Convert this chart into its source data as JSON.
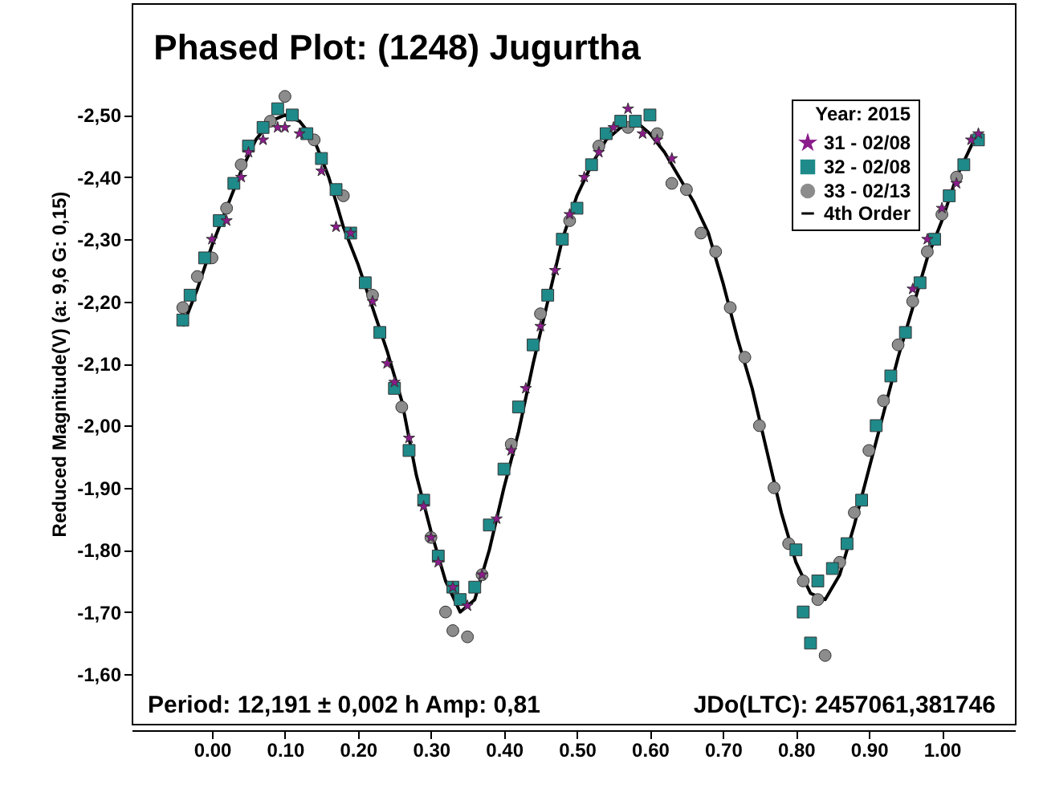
{
  "chart_data": {
    "type": "scatter",
    "title": "Phased Plot: (1248) Jugurtha",
    "ylabel": "Reduced Magnitude(V)   (a: 9,6  G: 0,15)",
    "legend_title": "Year: 2015",
    "legend": "top right",
    "grid": false,
    "xlim": [
      -0.11,
      1.1
    ],
    "ylim": [
      -1.52,
      -2.68
    ],
    "xticks": [
      {
        "value": 0,
        "label": "0.00"
      },
      {
        "value": 0.1,
        "label": "0.10"
      },
      {
        "value": 0.2,
        "label": "0.20"
      },
      {
        "value": 0.3,
        "label": "0.30"
      },
      {
        "value": 0.4,
        "label": "0.40"
      },
      {
        "value": 0.5,
        "label": "0.50"
      },
      {
        "value": 0.6,
        "label": "0.60"
      },
      {
        "value": 0.7,
        "label": "0.70"
      },
      {
        "value": 0.8,
        "label": "0.80"
      },
      {
        "value": 0.9,
        "label": "0.90"
      },
      {
        "value": 1,
        "label": "1.00"
      }
    ],
    "yticks": [
      {
        "value": -2.5,
        "label": "-2,50"
      },
      {
        "value": -2.4,
        "label": "-2,40"
      },
      {
        "value": -2.3,
        "label": "-2,30"
      },
      {
        "value": -2.2,
        "label": "-2,20"
      },
      {
        "value": -2.1,
        "label": "-2,10"
      },
      {
        "value": -2,
        "label": "-2,00"
      },
      {
        "value": -1.9,
        "label": "-1,90"
      },
      {
        "value": -1.8,
        "label": "-1,80"
      },
      {
        "value": -1.7,
        "label": "-1,70"
      },
      {
        "value": -1.6,
        "label": "-1,60"
      }
    ],
    "annotations": [
      "Period: 12,191 ± 0,002 h  Amp: 0,81",
      "JDo(LTC): 2457061,381746"
    ],
    "series": [
      {
        "name": "31 - 02/08",
        "marker": "star",
        "color": "#8b1a8b",
        "x": [
          0.0,
          0.02,
          0.04,
          0.05,
          0.07,
          0.09,
          0.1,
          0.12,
          0.15,
          0.17,
          0.19,
          0.22,
          0.24,
          0.25,
          0.27,
          0.29,
          0.3,
          0.31,
          0.33,
          0.35,
          0.37,
          0.39,
          0.41,
          0.43,
          0.45,
          0.47,
          0.49,
          0.51,
          0.53,
          0.55,
          0.57,
          0.59,
          0.61,
          0.63,
          0.96,
          0.98,
          1.0,
          1.02,
          1.04,
          1.05
        ],
        "values": [
          -2.3,
          -2.33,
          -2.4,
          -2.44,
          -2.46,
          -2.48,
          -2.48,
          -2.47,
          -2.41,
          -2.32,
          -2.31,
          -2.2,
          -2.1,
          -2.07,
          -1.98,
          -1.87,
          -1.82,
          -1.78,
          -1.74,
          -1.71,
          -1.76,
          -1.85,
          -1.96,
          -2.06,
          -2.16,
          -2.25,
          -2.34,
          -2.4,
          -2.44,
          -2.48,
          -2.51,
          -2.47,
          -2.46,
          -2.43,
          -2.22,
          -2.3,
          -2.35,
          -2.39,
          -2.46,
          -2.47
        ]
      },
      {
        "name": "32 - 02/08",
        "marker": "square",
        "color": "#1f8a8a",
        "x": [
          -0.04,
          -0.03,
          -0.01,
          0.01,
          0.03,
          0.05,
          0.07,
          0.09,
          0.11,
          0.13,
          0.15,
          0.17,
          0.19,
          0.21,
          0.23,
          0.25,
          0.27,
          0.29,
          0.31,
          0.33,
          0.34,
          0.36,
          0.38,
          0.4,
          0.42,
          0.44,
          0.46,
          0.48,
          0.5,
          0.52,
          0.54,
          0.56,
          0.58,
          0.6,
          0.8,
          0.81,
          0.82,
          0.83,
          0.85,
          0.87,
          0.89,
          0.91,
          0.93,
          0.95,
          0.97,
          0.99,
          1.01,
          1.03,
          1.05
        ],
        "values": [
          -2.17,
          -2.21,
          -2.27,
          -2.33,
          -2.39,
          -2.45,
          -2.48,
          -2.51,
          -2.5,
          -2.47,
          -2.43,
          -2.38,
          -2.31,
          -2.23,
          -2.15,
          -2.06,
          -1.96,
          -1.88,
          -1.79,
          -1.74,
          -1.72,
          -1.74,
          -1.84,
          -1.93,
          -2.03,
          -2.13,
          -2.21,
          -2.3,
          -2.35,
          -2.42,
          -2.47,
          -2.49,
          -2.49,
          -2.5,
          -1.8,
          -1.7,
          -1.65,
          -1.75,
          -1.77,
          -1.81,
          -1.88,
          -2.0,
          -2.08,
          -2.15,
          -2.23,
          -2.3,
          -2.37,
          -2.42,
          -2.46
        ]
      },
      {
        "name": "33 - 02/13",
        "marker": "circle",
        "color": "#8c8c8c",
        "x": [
          -0.04,
          -0.02,
          0.0,
          0.02,
          0.04,
          0.08,
          0.1,
          0.14,
          0.18,
          0.22,
          0.26,
          0.3,
          0.32,
          0.33,
          0.35,
          0.37,
          0.41,
          0.45,
          0.49,
          0.53,
          0.57,
          0.61,
          0.63,
          0.65,
          0.67,
          0.69,
          0.71,
          0.73,
          0.75,
          0.77,
          0.79,
          0.81,
          0.83,
          0.84,
          0.86,
          0.88,
          0.9,
          0.92,
          0.94,
          0.96,
          0.98,
          1.0,
          1.02
        ],
        "values": [
          -2.19,
          -2.24,
          -2.27,
          -2.35,
          -2.42,
          -2.49,
          -2.53,
          -2.46,
          -2.37,
          -2.21,
          -2.03,
          -1.82,
          -1.7,
          -1.67,
          -1.66,
          -1.76,
          -1.97,
          -2.18,
          -2.33,
          -2.45,
          -2.48,
          -2.47,
          -2.39,
          -2.38,
          -2.31,
          -2.28,
          -2.19,
          -2.11,
          -2.0,
          -1.9,
          -1.81,
          -1.75,
          -1.72,
          -1.63,
          -1.78,
          -1.86,
          -1.96,
          -2.04,
          -2.13,
          -2.2,
          -2.28,
          -2.34,
          -2.4
        ]
      },
      {
        "name": "4th Order",
        "type": "line",
        "marker": "none",
        "color": "#000000",
        "x": [
          -0.04,
          -0.02,
          0.0,
          0.02,
          0.04,
          0.06,
          0.08,
          0.1,
          0.12,
          0.14,
          0.16,
          0.18,
          0.2,
          0.22,
          0.24,
          0.26,
          0.28,
          0.3,
          0.32,
          0.34,
          0.36,
          0.38,
          0.4,
          0.42,
          0.44,
          0.46,
          0.48,
          0.5,
          0.52,
          0.54,
          0.56,
          0.58,
          0.6,
          0.62,
          0.64,
          0.66,
          0.68,
          0.7,
          0.72,
          0.74,
          0.76,
          0.78,
          0.8,
          0.82,
          0.84,
          0.86,
          0.88,
          0.9,
          0.92,
          0.94,
          0.96,
          0.98,
          1.0,
          1.02,
          1.04,
          1.05
        ],
        "values": [
          -2.16,
          -2.22,
          -2.29,
          -2.35,
          -2.41,
          -2.46,
          -2.49,
          -2.5,
          -2.49,
          -2.46,
          -2.4,
          -2.32,
          -2.26,
          -2.19,
          -2.12,
          -2.04,
          -1.92,
          -1.83,
          -1.75,
          -1.7,
          -1.72,
          -1.8,
          -1.9,
          -1.99,
          -2.1,
          -2.2,
          -2.3,
          -2.37,
          -2.42,
          -2.46,
          -2.48,
          -2.49,
          -2.47,
          -2.44,
          -2.4,
          -2.36,
          -2.31,
          -2.23,
          -2.14,
          -2.06,
          -1.96,
          -1.86,
          -1.78,
          -1.73,
          -1.72,
          -1.76,
          -1.84,
          -1.93,
          -2.02,
          -2.11,
          -2.19,
          -2.27,
          -2.33,
          -2.4,
          -2.45,
          -2.47
        ]
      }
    ]
  }
}
